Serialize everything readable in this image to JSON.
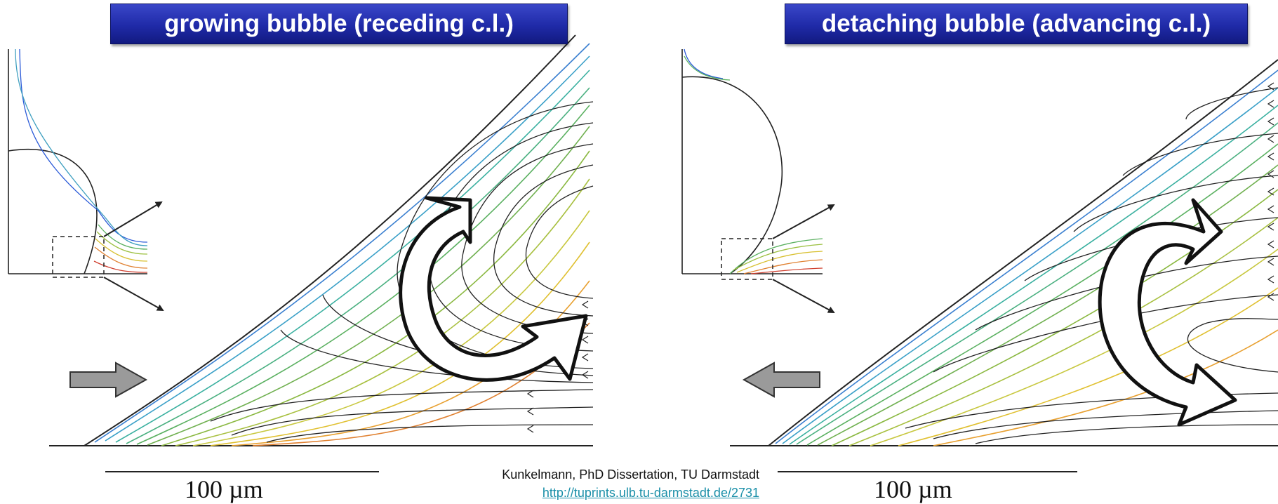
{
  "panels": {
    "left": {
      "title": "growing bubble (receding c.l.)",
      "scale_label": "100 µm"
    },
    "right": {
      "title": "detaching bubble (advancing c.l.)",
      "scale_label": "100 µm"
    }
  },
  "credit": {
    "text": "Kunkelmann, PhD Dissertation, TU Darmstadt",
    "link": "http://tuprints.ulb.tu-darmstadt.de/2731"
  }
}
